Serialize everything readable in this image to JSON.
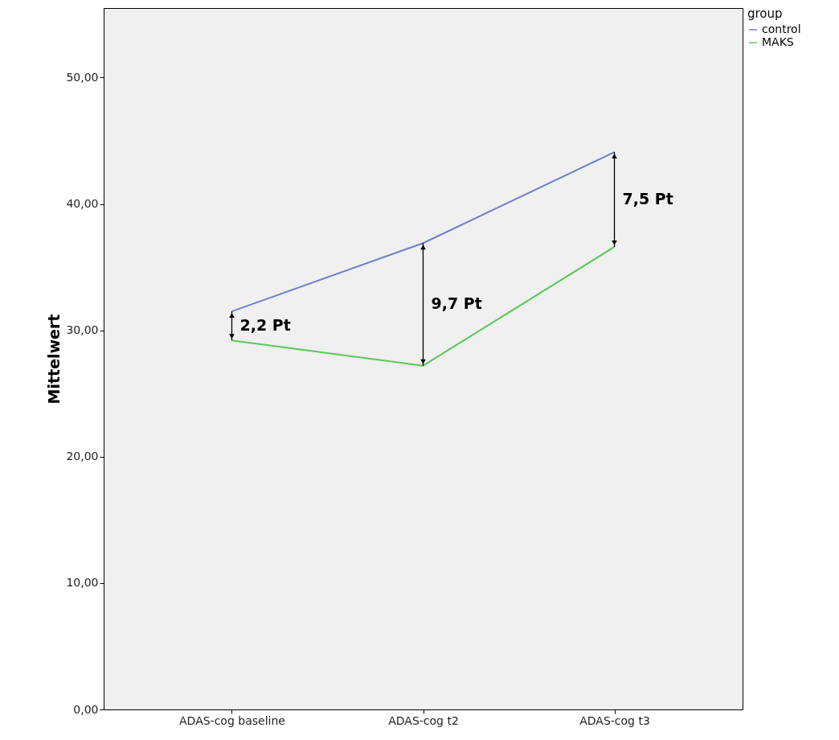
{
  "chart_data": {
    "type": "line",
    "ylabel": "Mittelwert",
    "legend_title": "group",
    "legend": "top right",
    "categories": [
      "ADAS-cog baseline",
      "ADAS-cog t2",
      "ADAS-cog t3"
    ],
    "series": [
      {
        "name": "control",
        "color": "#6f7fca",
        "values": [
          31.5,
          36.9,
          44.1
        ]
      },
      {
        "name": "MAKS",
        "color": "#5ac85a",
        "values": [
          29.2,
          27.2,
          36.6
        ]
      }
    ],
    "ylim": [
      0,
      55.5
    ],
    "yticks": [
      {
        "value": 0,
        "label": "0,00"
      },
      {
        "value": 10,
        "label": "10,00"
      },
      {
        "value": 20,
        "label": "20,00"
      },
      {
        "value": 30,
        "label": "30,00"
      },
      {
        "value": 40,
        "label": "40,00"
      },
      {
        "value": 50,
        "label": "50,00"
      }
    ],
    "grid": false,
    "annotations": [
      "2,2 Pt",
      "9,7 Pt",
      "7,5 Pt"
    ]
  }
}
